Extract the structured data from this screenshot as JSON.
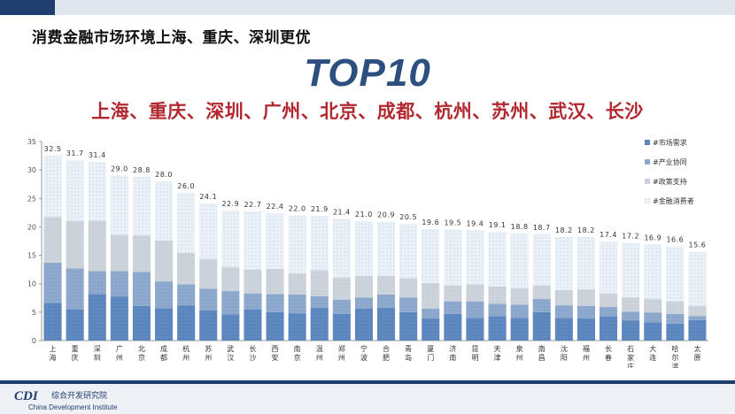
{
  "header": {
    "headline": "消费金融市场环境上海、重庆、深圳更优",
    "top10": "TOP10",
    "cities_line": "上海、重庆、深圳、广州、北京、成都、杭州、苏州、武汉、长沙"
  },
  "footer": {
    "logo_mark": "CDI",
    "org_cn": "综合开发研究院",
    "org_en": "China Development Institute"
  },
  "colors": {
    "market_demand": "#5b85bd",
    "industry_synergy": "#8aa6cb",
    "policy_support": "#ccd3db",
    "consumers": "#dbe7f0",
    "axis": "#8c8c8c"
  },
  "chart_data": {
    "type": "bar",
    "stacked": true,
    "ylim": [
      0,
      35
    ],
    "yticks": [
      "0",
      "5",
      "10",
      "15",
      "20",
      "25",
      "30",
      "35"
    ],
    "legend_position": "right",
    "categories": [
      "上海",
      "重庆",
      "深圳",
      "广州",
      "北京",
      "成都",
      "杭州",
      "苏州",
      "武汉",
      "长沙",
      "西安",
      "南京",
      "温州",
      "郑州",
      "宁波",
      "合肥",
      "青岛",
      "厦门",
      "济南",
      "昆明",
      "天津",
      "泉州",
      "南昌",
      "沈阳",
      "福州",
      "长春",
      "石家庄",
      "大连",
      "哈尔滨",
      "太原"
    ],
    "totals": [
      32.5,
      31.7,
      31.4,
      29.0,
      28.8,
      28.0,
      26.0,
      24.1,
      22.9,
      22.7,
      22.4,
      22.0,
      21.9,
      21.4,
      21.0,
      20.9,
      20.5,
      19.6,
      19.5,
      19.4,
      19.1,
      18.8,
      18.7,
      18.2,
      18.2,
      17.4,
      17.2,
      16.9,
      16.6,
      15.6
    ],
    "total_labels": [
      "32.5",
      "31.7",
      "31.4",
      "29.0",
      "28.8",
      "28.0",
      "26.0",
      "24.1",
      "22.9",
      "22.7",
      "22.4",
      "22.0",
      "21.9",
      "21.4",
      "21.0",
      "20.9",
      "20.5",
      "19.6",
      "19.5",
      "19.4",
      "19.1",
      "18.8",
      "18.7",
      "18.2",
      "18.2",
      "17.4",
      "17.2",
      "16.9",
      "16.6",
      "15.6"
    ],
    "series": [
      {
        "name": "#市场需求",
        "values": [
          6.6,
          5.5,
          8.2,
          7.7,
          6.1,
          5.7,
          6.2,
          5.3,
          4.6,
          5.5,
          5.0,
          4.8,
          5.8,
          4.7,
          5.6,
          5.8,
          5.0,
          3.9,
          4.7,
          4.0,
          4.3,
          4.0,
          5.0,
          4.0,
          3.9,
          4.2,
          3.5,
          3.2,
          3.0,
          3.6
        ]
      },
      {
        "name": "#产业协同",
        "values": [
          7.1,
          7.2,
          4.0,
          4.5,
          6.0,
          4.7,
          3.7,
          3.8,
          4.1,
          2.8,
          3.2,
          3.3,
          2.0,
          2.5,
          2.0,
          2.3,
          2.6,
          1.7,
          2.2,
          2.9,
          2.2,
          2.3,
          2.3,
          2.2,
          2.2,
          1.7,
          1.6,
          1.7,
          1.7,
          0.7
        ]
      },
      {
        "name": "#政策支持",
        "values": [
          8.0,
          8.3,
          8.9,
          6.4,
          6.4,
          7.2,
          5.5,
          5.2,
          4.2,
          4.2,
          4.4,
          3.7,
          4.6,
          3.9,
          3.8,
          3.3,
          3.4,
          4.5,
          2.8,
          3.0,
          3.0,
          2.9,
          2.4,
          2.7,
          2.9,
          2.4,
          2.5,
          2.4,
          2.2,
          1.8
        ]
      },
      {
        "name": "#金融消费者",
        "values": [
          10.8,
          10.7,
          10.3,
          10.4,
          10.3,
          10.4,
          10.6,
          9.8,
          10.0,
          10.2,
          9.8,
          10.2,
          9.5,
          10.3,
          9.6,
          9.5,
          9.5,
          9.5,
          9.8,
          9.5,
          9.6,
          9.6,
          9.0,
          9.3,
          9.2,
          9.1,
          9.6,
          9.6,
          9.7,
          9.5
        ]
      }
    ]
  }
}
